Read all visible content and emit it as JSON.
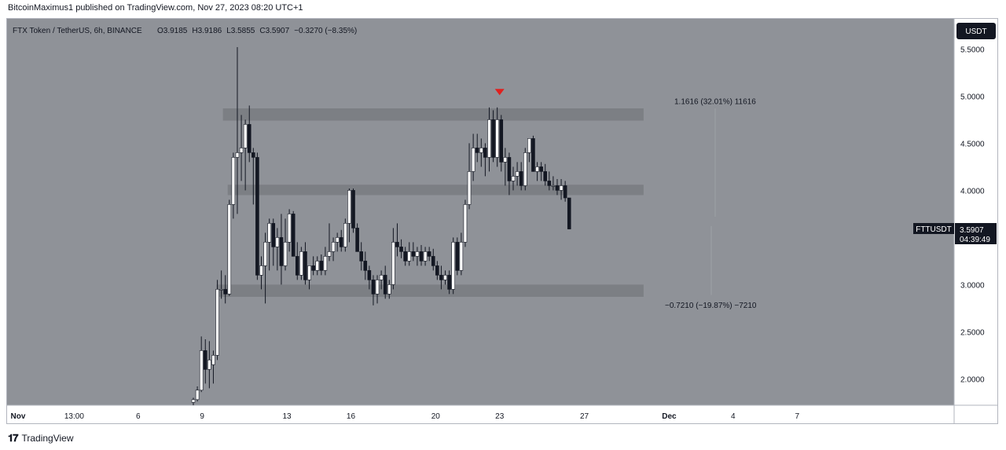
{
  "header": {
    "published": "BitcoinMaximus1 published on TradingView.com, Nov 27, 2023 08:20 UTC+1"
  },
  "footer": {
    "logo_icon": "tradingview-logo-icon",
    "brand": "TradingView"
  },
  "legend": {
    "symbol": "FTX Token / TetherUS, 6h, BINANCE",
    "o_label": "O",
    "o_value": "3.9185",
    "h_label": "H",
    "h_value": "3.9186",
    "l_label": "L",
    "l_value": "3.5855",
    "c_label": "C",
    "c_value": "3.5907",
    "change": "−0.3270 (−8.35%)"
  },
  "price_axis": {
    "currency": "USDT",
    "ticks": [
      "5.5000",
      "5.0000",
      "4.5000",
      "4.0000",
      "3.0000",
      "2.5000",
      "2.0000"
    ],
    "last_symbol": "FTTUSDT",
    "last_price": "3.5907",
    "countdown": "04:39:49"
  },
  "time_axis": {
    "ticks": [
      {
        "label": "Nov",
        "t": 0,
        "bold": true
      },
      {
        "label": "13:00",
        "t": 4.0
      },
      {
        "label": "6",
        "t": 8.0
      },
      {
        "label": "9",
        "t": 12.0
      },
      {
        "label": "13",
        "t": 17.3
      },
      {
        "label": "16",
        "t": 21.3
      },
      {
        "label": "20",
        "t": 26.6
      },
      {
        "label": "23",
        "t": 30.6
      },
      {
        "label": "27",
        "t": 35.9
      },
      {
        "label": "Dec",
        "t": 41.2,
        "bold": true
      },
      {
        "label": "4",
        "t": 45.2
      },
      {
        "label": "7",
        "t": 49.2
      }
    ]
  },
  "colors": {
    "background": "#8f9298",
    "zone": "#7c7f84",
    "up_body": "#ffffff",
    "down_body": "#131722",
    "wick": "#131722",
    "marker": "#e0201e"
  },
  "chart_data": {
    "type": "candlestick",
    "interval": "6h",
    "ylim": [
      1.72,
      5.82
    ],
    "zones": [
      {
        "from": 4.74,
        "to": 4.87,
        "t_start": 13.3,
        "t_end": 39.6
      },
      {
        "from": 3.95,
        "to": 4.06,
        "t_start": 13.6,
        "t_end": 39.6
      },
      {
        "from": 2.87,
        "to": 3.0,
        "t_start": 12.9,
        "t_end": 39.6
      }
    ],
    "measurements": [
      {
        "label": "1.1616 (32.01%) 11616",
        "y": 4.94,
        "t": 34.5
      },
      {
        "label": "−0.7210 (−19.87%) −7210",
        "y": 2.78,
        "t": 34.2
      }
    ],
    "marker": {
      "t": 30.6,
      "y": 5.01,
      "shape": "down-triangle"
    },
    "candles": [
      [
        11.45,
        1.75,
        1.8,
        1.72,
        1.78
      ],
      [
        11.7,
        1.78,
        1.92,
        1.76,
        1.88
      ],
      [
        11.95,
        1.88,
        2.45,
        1.86,
        2.3
      ],
      [
        12.2,
        2.3,
        2.42,
        1.95,
        2.1
      ],
      [
        12.45,
        2.1,
        2.4,
        1.9,
        2.2
      ],
      [
        12.7,
        2.15,
        2.3,
        1.95,
        2.25
      ],
      [
        12.95,
        2.25,
        3.05,
        2.2,
        2.95
      ],
      [
        13.2,
        2.95,
        3.15,
        2.85,
        2.95
      ],
      [
        13.45,
        2.95,
        3.1,
        2.8,
        2.9
      ],
      [
        13.7,
        2.9,
        3.9,
        2.88,
        3.85
      ],
      [
        13.95,
        3.85,
        4.4,
        3.7,
        4.35
      ],
      [
        14.2,
        4.35,
        5.52,
        3.75,
        4.4
      ],
      [
        14.45,
        4.4,
        4.8,
        4.1,
        4.45
      ],
      [
        14.7,
        4.45,
        4.75,
        4.0,
        4.7
      ],
      [
        14.95,
        4.7,
        4.9,
        4.3,
        4.4
      ],
      [
        15.2,
        4.4,
        4.45,
        3.85,
        4.35
      ],
      [
        15.45,
        4.35,
        4.4,
        3.05,
        3.1
      ],
      [
        15.7,
        3.1,
        3.3,
        2.95,
        3.2
      ],
      [
        15.95,
        3.2,
        3.55,
        2.8,
        3.45
      ],
      [
        16.2,
        3.45,
        3.7,
        3.15,
        3.65
      ],
      [
        16.45,
        3.65,
        3.7,
        3.2,
        3.4
      ],
      [
        16.7,
        3.4,
        3.6,
        3.15,
        3.5
      ],
      [
        16.95,
        3.5,
        3.75,
        3.0,
        3.2
      ],
      [
        17.2,
        3.2,
        3.7,
        3.15,
        3.45
      ],
      [
        17.45,
        3.45,
        3.8,
        3.35,
        3.75
      ],
      [
        17.7,
        3.75,
        3.78,
        3.3,
        3.3
      ],
      [
        17.95,
        3.3,
        3.45,
        3.05,
        3.1
      ],
      [
        18.2,
        3.1,
        3.4,
        3.05,
        3.35
      ],
      [
        18.45,
        3.35,
        3.45,
        3.0,
        3.05
      ],
      [
        18.7,
        3.05,
        3.2,
        2.95,
        3.2
      ],
      [
        18.95,
        3.2,
        3.3,
        3.1,
        3.15
      ],
      [
        19.2,
        3.15,
        3.3,
        3.1,
        3.25
      ],
      [
        19.45,
        3.25,
        3.32,
        3.1,
        3.15
      ],
      [
        19.7,
        3.15,
        3.4,
        3.1,
        3.3
      ],
      [
        19.95,
        3.3,
        3.65,
        3.25,
        3.35
      ],
      [
        20.2,
        3.35,
        3.5,
        3.25,
        3.45
      ],
      [
        20.45,
        3.45,
        3.55,
        3.35,
        3.5
      ],
      [
        20.7,
        3.5,
        3.58,
        3.35,
        3.4
      ],
      [
        20.95,
        3.4,
        3.7,
        3.35,
        3.65
      ],
      [
        21.2,
        3.65,
        4.02,
        3.45,
        4.0
      ],
      [
        21.45,
        4.0,
        4.02,
        3.55,
        3.6
      ],
      [
        21.7,
        3.6,
        3.65,
        3.35,
        3.35
      ],
      [
        21.95,
        3.35,
        3.45,
        3.15,
        3.25
      ],
      [
        22.2,
        3.25,
        3.35,
        3.05,
        3.15
      ],
      [
        22.45,
        3.15,
        3.2,
        2.95,
        3.05
      ],
      [
        22.7,
        3.05,
        3.1,
        2.78,
        2.9
      ],
      [
        22.95,
        2.9,
        3.1,
        2.8,
        3.05
      ],
      [
        23.2,
        3.05,
        3.15,
        2.95,
        3.1
      ],
      [
        23.45,
        3.1,
        3.2,
        2.85,
        2.9
      ],
      [
        23.7,
        2.9,
        3.05,
        2.85,
        3.0
      ],
      [
        23.95,
        3.0,
        3.6,
        2.95,
        3.45
      ],
      [
        24.2,
        3.45,
        3.65,
        3.3,
        3.4
      ],
      [
        24.45,
        3.4,
        3.48,
        3.28,
        3.35
      ],
      [
        24.7,
        3.35,
        3.4,
        3.2,
        3.25
      ],
      [
        24.95,
        3.25,
        3.45,
        3.2,
        3.35
      ],
      [
        25.2,
        3.35,
        3.45,
        3.25,
        3.3
      ],
      [
        25.45,
        3.3,
        3.4,
        3.2,
        3.35
      ],
      [
        25.7,
        3.35,
        3.42,
        3.2,
        3.25
      ],
      [
        25.95,
        3.25,
        3.4,
        3.2,
        3.35
      ],
      [
        26.2,
        3.35,
        3.4,
        3.25,
        3.3
      ],
      [
        26.45,
        3.3,
        3.38,
        3.15,
        3.2
      ],
      [
        26.7,
        3.2,
        3.25,
        3.05,
        3.1
      ],
      [
        26.95,
        3.1,
        3.2,
        2.95,
        3.05
      ],
      [
        27.2,
        3.05,
        3.15,
        3.0,
        3.1
      ],
      [
        27.45,
        3.1,
        3.15,
        2.9,
        2.95
      ],
      [
        27.7,
        2.95,
        3.5,
        2.9,
        3.45
      ],
      [
        27.95,
        3.45,
        3.5,
        3.1,
        3.15
      ],
      [
        28.2,
        3.15,
        3.55,
        3.1,
        3.45
      ],
      [
        28.45,
        3.45,
        3.9,
        3.4,
        3.85
      ],
      [
        28.7,
        3.85,
        4.5,
        3.8,
        4.2
      ],
      [
        28.95,
        4.2,
        4.6,
        4.1,
        4.45
      ],
      [
        29.2,
        4.45,
        4.6,
        4.3,
        4.4
      ],
      [
        29.45,
        4.4,
        4.55,
        4.25,
        4.45
      ],
      [
        29.7,
        4.45,
        4.5,
        4.15,
        4.35
      ],
      [
        29.95,
        4.35,
        4.88,
        4.2,
        4.75
      ],
      [
        30.2,
        4.75,
        4.85,
        4.3,
        4.35
      ],
      [
        30.45,
        4.35,
        4.88,
        4.25,
        4.75
      ],
      [
        30.7,
        4.75,
        4.8,
        4.2,
        4.3
      ],
      [
        30.95,
        4.3,
        4.45,
        4.05,
        4.35
      ],
      [
        31.2,
        4.35,
        4.4,
        3.95,
        4.1
      ],
      [
        31.45,
        4.1,
        4.25,
        4.0,
        4.15
      ],
      [
        31.7,
        4.15,
        4.3,
        4.05,
        4.2
      ],
      [
        31.95,
        4.2,
        4.3,
        4.0,
        4.05
      ],
      [
        32.2,
        4.05,
        4.45,
        4.0,
        4.4
      ],
      [
        32.45,
        4.4,
        4.55,
        4.3,
        4.55
      ],
      [
        32.7,
        4.55,
        4.58,
        4.2,
        4.2
      ],
      [
        32.95,
        4.2,
        4.3,
        4.1,
        4.25
      ],
      [
        33.2,
        4.25,
        4.3,
        4.1,
        4.2
      ],
      [
        33.45,
        4.2,
        4.28,
        4.05,
        4.1
      ],
      [
        33.7,
        4.1,
        4.2,
        4.0,
        4.05
      ],
      [
        33.95,
        4.05,
        4.15,
        4.0,
        4.05
      ],
      [
        34.2,
        4.05,
        4.12,
        3.95,
        4.0
      ],
      [
        34.45,
        4.0,
        4.12,
        3.9,
        4.05
      ],
      [
        34.7,
        4.05,
        4.1,
        3.88,
        3.92
      ],
      [
        34.95,
        3.92,
        3.92,
        3.59,
        3.59
      ]
    ]
  }
}
